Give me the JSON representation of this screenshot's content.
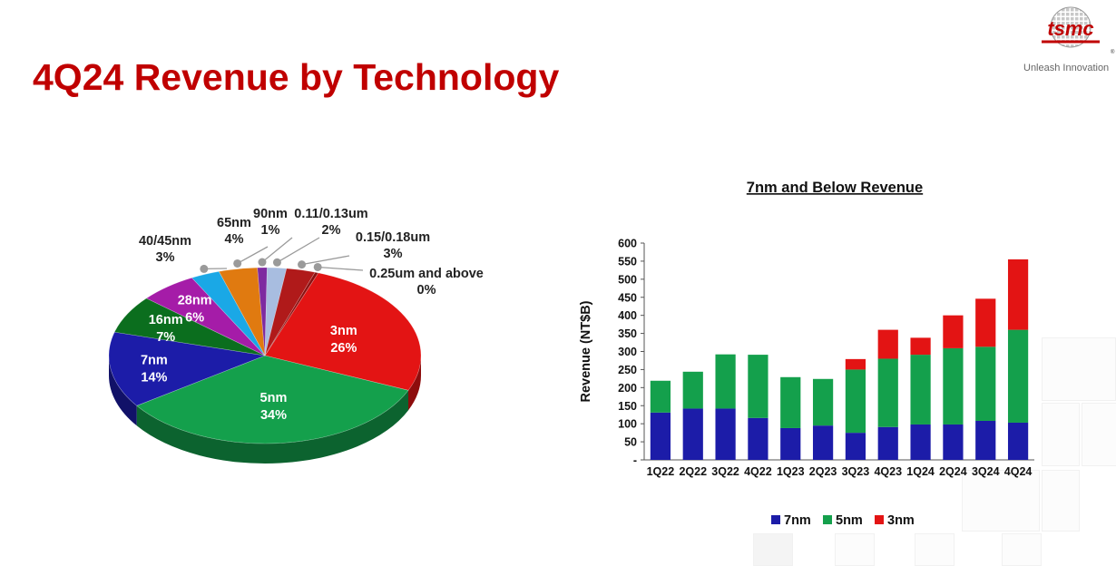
{
  "header": {
    "title": "4Q24 Revenue by Technology",
    "logo_text": "tsmc",
    "tagline": "Unleash Innovation"
  },
  "chart_data": [
    {
      "type": "pie",
      "title": "",
      "slices": [
        {
          "name": "3nm",
          "label": "26%",
          "value": 26,
          "color": "#e31414"
        },
        {
          "name": "5nm",
          "label": "34%",
          "value": 34,
          "color": "#14a04c"
        },
        {
          "name": "7nm",
          "label": "14%",
          "value": 14,
          "color": "#1c1ca8"
        },
        {
          "name": "16nm",
          "label": "7%",
          "value": 7,
          "color": "#0b6e1e"
        },
        {
          "name": "28nm",
          "label": "6%",
          "value": 6,
          "color": "#a51ca8"
        },
        {
          "name": "40/45nm",
          "label": "3%",
          "value": 3,
          "color": "#1aa8e6"
        },
        {
          "name": "65nm",
          "label": "4%",
          "value": 4,
          "color": "#e07a10"
        },
        {
          "name": "90nm",
          "label": "1%",
          "value": 1,
          "color": "#7e2aa0"
        },
        {
          "name": "0.11/0.13um",
          "label": "2%",
          "value": 2,
          "color": "#a8bde0"
        },
        {
          "name": "0.15/0.18um",
          "label": "3%",
          "value": 3,
          "color": "#b01a1a"
        },
        {
          "name": "0.25um and above",
          "label": "0%",
          "value": 0,
          "color": "#8a1010"
        }
      ]
    },
    {
      "type": "bar",
      "stacked": true,
      "title": "7nm and Below Revenue",
      "ylabel": "Revenue (NT$B)",
      "ylim": [
        0,
        600
      ],
      "yticks": [
        "-",
        "50",
        "100",
        "150",
        "200",
        "250",
        "300",
        "350",
        "400",
        "450",
        "500",
        "550",
        "600"
      ],
      "categories": [
        "1Q22",
        "2Q22",
        "3Q22",
        "4Q22",
        "1Q23",
        "2Q23",
        "3Q23",
        "4Q23",
        "1Q24",
        "2Q24",
        "3Q24",
        "4Q24"
      ],
      "series": [
        {
          "name": "7nm",
          "color": "#1c1ca8",
          "values": [
            131,
            142,
            142,
            116,
            88,
            95,
            75,
            91,
            98,
            98,
            108,
            103
          ]
        },
        {
          "name": "5nm",
          "color": "#14a04c",
          "values": [
            88,
            102,
            150,
            175,
            141,
            129,
            175,
            189,
            193,
            211,
            205,
            257
          ]
        },
        {
          "name": "3nm",
          "color": "#e31414",
          "values": [
            0,
            0,
            0,
            0,
            0,
            0,
            29,
            80,
            47,
            91,
            133,
            195
          ]
        }
      ],
      "legend_position": "bottom"
    }
  ]
}
